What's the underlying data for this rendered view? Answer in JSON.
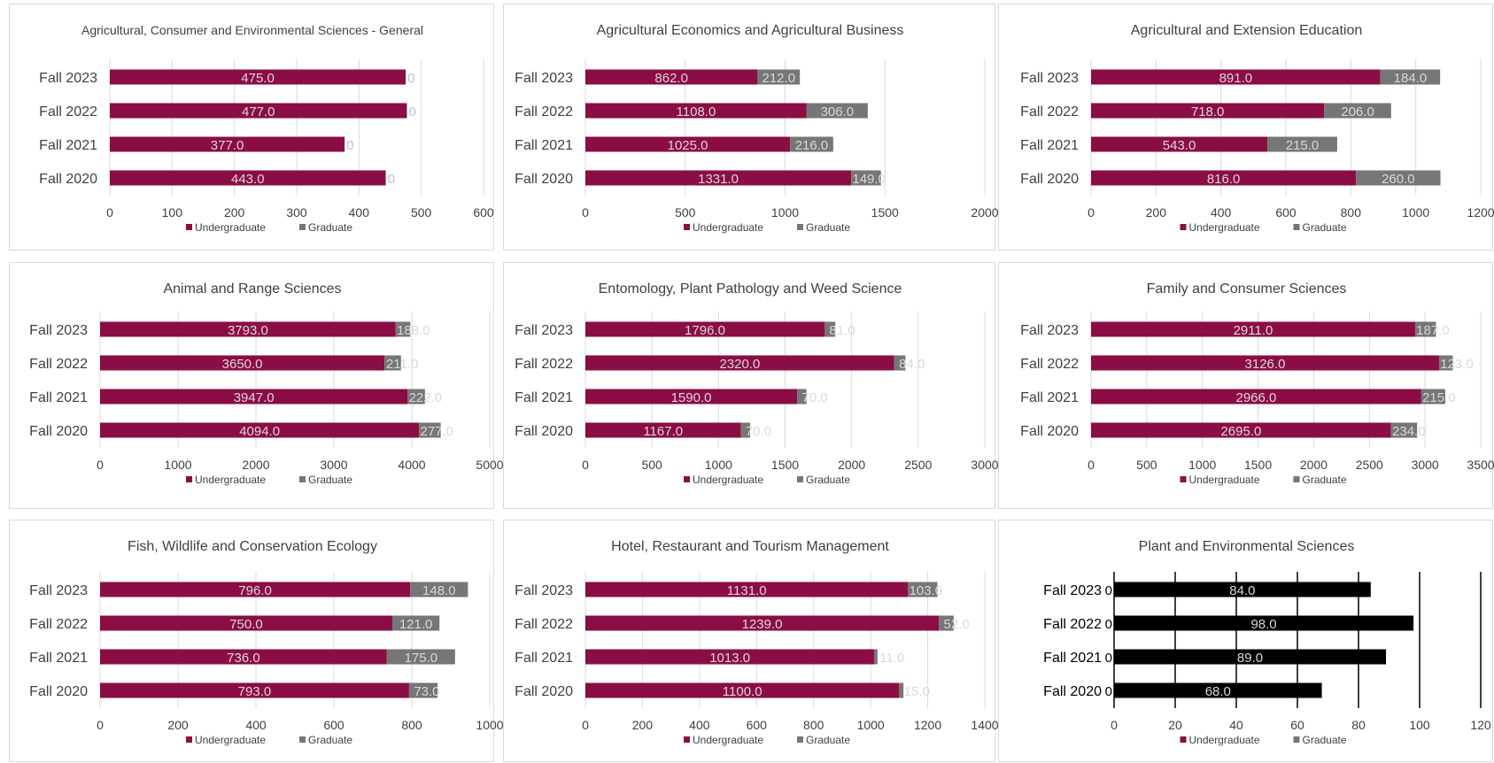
{
  "colors": {
    "undergraduate": "#8b0d45",
    "graduate": "#767676",
    "special_bar": "#000000",
    "gridline": "#d9d9d9",
    "special_gridline": "#000000",
    "axis_text": "#404040",
    "bar_label": "#d9d9d9",
    "zero_label": "#bfbfbf"
  },
  "chart_data": [
    {
      "type": "bar",
      "orientation": "horizontal",
      "stacked": true,
      "title": "Agricultural, Consumer and Environmental Sciences - General",
      "categories": [
        "Fall 2023",
        "Fall 2022",
        "Fall 2021",
        "Fall 2020"
      ],
      "series": [
        {
          "name": "Undergraduate",
          "values": [
            475,
            477,
            377,
            443
          ],
          "labels": [
            "475.0",
            "477.0",
            "377.0",
            "443.0"
          ]
        },
        {
          "name": "Graduate",
          "values": [
            0,
            0,
            0,
            0
          ],
          "labels": [
            "0",
            "0",
            "0",
            "0"
          ]
        }
      ],
      "xlim": [
        0,
        600
      ],
      "xticks": [
        "0",
        "100",
        "200",
        "300",
        "400",
        "500",
        "600"
      ],
      "legend": "bottom",
      "grid": true
    },
    {
      "type": "bar",
      "orientation": "horizontal",
      "stacked": true,
      "title": "Agricultural Economics and Agricultural Business",
      "categories": [
        "Fall 2023",
        "Fall 2022",
        "Fall 2021",
        "Fall 2020"
      ],
      "series": [
        {
          "name": "Undergraduate",
          "values": [
            862,
            1108,
            1025,
            1331
          ],
          "labels": [
            "862.0",
            "1108.0",
            "1025.0",
            "1331.0"
          ]
        },
        {
          "name": "Graduate",
          "values": [
            212,
            306,
            216,
            149
          ],
          "labels": [
            "212.0",
            "306.0",
            "216.0",
            "149.0"
          ]
        }
      ],
      "xlim": [
        0,
        2000
      ],
      "xticks": [
        "0",
        "500",
        "1000",
        "1500",
        "2000"
      ],
      "legend": "bottom",
      "grid": true
    },
    {
      "type": "bar",
      "orientation": "horizontal",
      "stacked": true,
      "title": "Agricultural and Extension Education",
      "categories": [
        "Fall 2023",
        "Fall 2022",
        "Fall 2021",
        "Fall 2020"
      ],
      "series": [
        {
          "name": "Undergraduate",
          "values": [
            891,
            718,
            543,
            816
          ],
          "labels": [
            "891.0",
            "718.0",
            "543.0",
            "816.0"
          ]
        },
        {
          "name": "Graduate",
          "values": [
            184,
            206,
            215,
            260
          ],
          "labels": [
            "184.0",
            "206.0",
            "215.0",
            "260.0"
          ]
        }
      ],
      "xlim": [
        0,
        1200
      ],
      "xticks": [
        "0",
        "200",
        "400",
        "600",
        "800",
        "1000",
        "1200"
      ],
      "legend": "bottom",
      "grid": true
    },
    {
      "type": "bar",
      "orientation": "horizontal",
      "stacked": true,
      "title": "Animal and Range Sciences",
      "categories": [
        "Fall 2023",
        "Fall 2022",
        "Fall 2021",
        "Fall 2020"
      ],
      "series": [
        {
          "name": "Undergraduate",
          "values": [
            3793,
            3650,
            3947,
            4094
          ],
          "labels": [
            "3793.0",
            "3650.0",
            "3947.0",
            "4094.0"
          ]
        },
        {
          "name": "Graduate",
          "values": [
            188,
            211,
            222,
            277
          ],
          "labels": [
            "188.0",
            "211.0",
            "222.0",
            "277.0"
          ]
        }
      ],
      "xlim": [
        0,
        5000
      ],
      "xticks": [
        "0",
        "1000",
        "2000",
        "3000",
        "4000",
        "5000"
      ],
      "legend": "bottom",
      "grid": true
    },
    {
      "type": "bar",
      "orientation": "horizontal",
      "stacked": true,
      "title": "Entomology, Plant Pathology and Weed Science",
      "categories": [
        "Fall 2023",
        "Fall 2022",
        "Fall 2021",
        "Fall 2020"
      ],
      "series": [
        {
          "name": "Undergraduate",
          "values": [
            1796,
            2320,
            1590,
            1167
          ],
          "labels": [
            "1796.0",
            "2320.0",
            "1590.0",
            "1167.0"
          ]
        },
        {
          "name": "Graduate",
          "values": [
            81,
            84,
            70,
            70
          ],
          "labels": [
            "81.0",
            "84.0",
            "70.0",
            "70.0"
          ]
        }
      ],
      "xlim": [
        0,
        3000
      ],
      "xticks": [
        "0",
        "500",
        "1000",
        "1500",
        "2000",
        "2500",
        "3000"
      ],
      "legend": "bottom",
      "grid": true
    },
    {
      "type": "bar",
      "orientation": "horizontal",
      "stacked": true,
      "title": "Family and Consumer Sciences",
      "categories": [
        "Fall 2023",
        "Fall 2022",
        "Fall 2021",
        "Fall 2020"
      ],
      "series": [
        {
          "name": "Undergraduate",
          "values": [
            2911,
            3126,
            2966,
            2695
          ],
          "labels": [
            "2911.0",
            "3126.0",
            "2966.0",
            "2695.0"
          ]
        },
        {
          "name": "Graduate",
          "values": [
            187,
            123,
            215,
            234
          ],
          "labels": [
            "187.0",
            "123.0",
            "215.0",
            "234.0"
          ]
        }
      ],
      "xlim": [
        0,
        3500
      ],
      "xticks": [
        "0",
        "500",
        "1000",
        "1500",
        "2000",
        "2500",
        "3000",
        "3500"
      ],
      "legend": "bottom",
      "grid": true
    },
    {
      "type": "bar",
      "orientation": "horizontal",
      "stacked": true,
      "title": "Fish, Wildlife and Conservation Ecology",
      "categories": [
        "Fall 2023",
        "Fall 2022",
        "Fall 2021",
        "Fall 2020"
      ],
      "series": [
        {
          "name": "Undergraduate",
          "values": [
            796,
            750,
            736,
            793
          ],
          "labels": [
            "796.0",
            "750.0",
            "736.0",
            "793.0"
          ]
        },
        {
          "name": "Graduate",
          "values": [
            148,
            121,
            175,
            73
          ],
          "labels": [
            "148.0",
            "121.0",
            "175.0",
            "73.0"
          ]
        }
      ],
      "xlim": [
        0,
        1000
      ],
      "xticks": [
        "0",
        "200",
        "400",
        "600",
        "800",
        "1000"
      ],
      "legend": "bottom",
      "grid": true
    },
    {
      "type": "bar",
      "orientation": "horizontal",
      "stacked": true,
      "title": "Hotel, Restaurant and Tourism Management",
      "categories": [
        "Fall 2023",
        "Fall 2022",
        "Fall 2021",
        "Fall 2020"
      ],
      "series": [
        {
          "name": "Undergraduate",
          "values": [
            1131,
            1239,
            1013,
            1100
          ],
          "labels": [
            "1131.0",
            "1239.0",
            "1013.0",
            "1100.0"
          ]
        },
        {
          "name": "Graduate",
          "values": [
            103,
            52,
            11,
            15
          ],
          "labels": [
            "103.0",
            "52.0",
            "11.0",
            "15.0"
          ]
        }
      ],
      "xlim": [
        0,
        1400
      ],
      "xticks": [
        "0",
        "200",
        "400",
        "600",
        "800",
        "1000",
        "1200",
        "1400"
      ],
      "legend": "bottom",
      "grid": true
    },
    {
      "type": "bar",
      "orientation": "horizontal",
      "stacked": true,
      "title": "Plant and Environmental Sciences",
      "categories": [
        "Fall 2023",
        "Fall 2022",
        "Fall 2021",
        "Fall 2020"
      ],
      "series": [
        {
          "name": "Undergraduate",
          "values": [
            0,
            0,
            0,
            0
          ],
          "labels": [
            "0",
            "0",
            "0",
            "0"
          ]
        },
        {
          "name": "Graduate",
          "values": [
            84,
            98,
            89,
            68
          ],
          "labels": [
            "84.0",
            "98.0",
            "89.0",
            "68.0"
          ]
        }
      ],
      "xlim": [
        0,
        120
      ],
      "xticks": [
        "0",
        "20",
        "40",
        "60",
        "80",
        "100",
        "120"
      ],
      "legend": "bottom",
      "grid": true,
      "style": "black"
    }
  ]
}
